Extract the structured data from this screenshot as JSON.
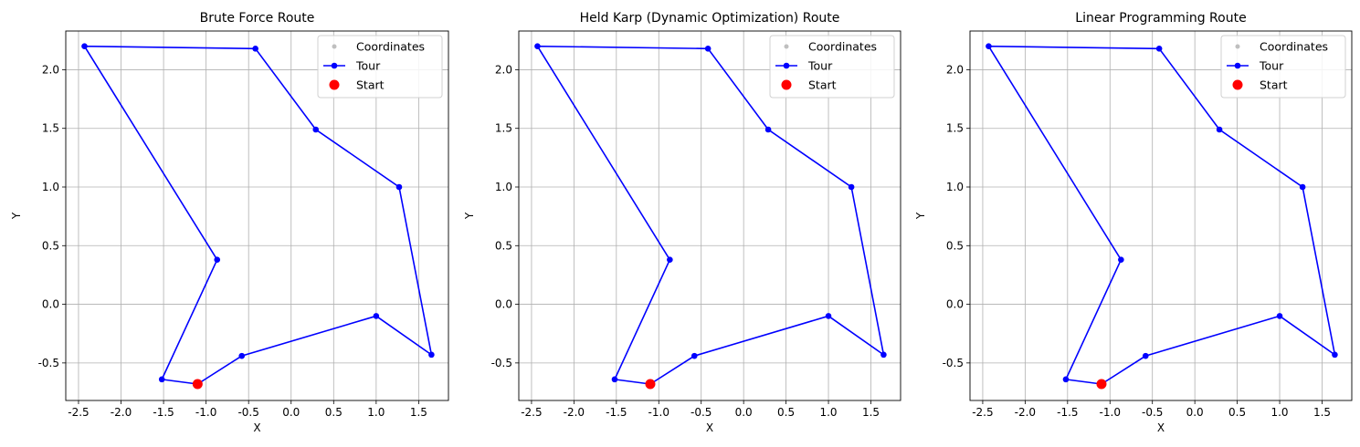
{
  "chart_data": [
    {
      "type": "line",
      "title": "Brute Force Route",
      "xlabel": "X",
      "ylabel": "Y",
      "xlim": [
        -2.65,
        1.85
      ],
      "ylim": [
        -0.82,
        2.33
      ],
      "xticks": [
        -2.5,
        -2.0,
        -1.5,
        -1.0,
        -0.5,
        0.0,
        0.5,
        1.0,
        1.5
      ],
      "xtick_labels": [
        "-2.5",
        "-2.0",
        "-1.5",
        "-1.0",
        "-0.5",
        "0.0",
        "0.5",
        "1.0",
        "1.5"
      ],
      "yticks": [
        -0.5,
        0.0,
        0.5,
        1.0,
        1.5,
        2.0
      ],
      "ytick_labels": [
        "-0.5",
        "0.0",
        "0.5",
        "1.0",
        "1.5",
        "2.0"
      ],
      "grid": true,
      "legend_position": "top-right",
      "series": [
        {
          "name": "Coordinates",
          "kind": "scatter",
          "color": "#bfbfbf",
          "x": [
            -1.1,
            -1.52,
            -0.87,
            -2.43,
            -0.42,
            0.29,
            1.27,
            1.65,
            1.0,
            -0.58
          ],
          "y": [
            -0.68,
            -0.64,
            0.38,
            2.2,
            2.18,
            1.49,
            1.0,
            -0.43,
            -0.1,
            -0.44
          ]
        },
        {
          "name": "Tour",
          "kind": "line",
          "color": "#0000ff",
          "x": [
            -1.1,
            -1.52,
            -0.87,
            -2.43,
            -0.42,
            0.29,
            1.27,
            1.65,
            1.0,
            -0.58,
            -1.1
          ],
          "y": [
            -0.68,
            -0.64,
            0.38,
            2.2,
            2.18,
            1.49,
            1.0,
            -0.43,
            -0.1,
            -0.44,
            -0.68
          ]
        },
        {
          "name": "Start",
          "kind": "point",
          "color": "#ff0000",
          "x": [
            -1.1
          ],
          "y": [
            -0.68
          ]
        }
      ]
    },
    {
      "type": "line",
      "title": "Held Karp (Dynamic Optimization) Route",
      "xlabel": "X",
      "ylabel": "Y",
      "xlim": [
        -2.65,
        1.85
      ],
      "ylim": [
        -0.82,
        2.33
      ],
      "xticks": [
        -2.5,
        -2.0,
        -1.5,
        -1.0,
        -0.5,
        0.0,
        0.5,
        1.0,
        1.5
      ],
      "xtick_labels": [
        "-2.5",
        "-2.0",
        "-1.5",
        "-1.0",
        "-0.5",
        "0.0",
        "0.5",
        "1.0",
        "1.5"
      ],
      "yticks": [
        -0.5,
        0.0,
        0.5,
        1.0,
        1.5,
        2.0
      ],
      "ytick_labels": [
        "-0.5",
        "0.0",
        "0.5",
        "1.0",
        "1.5",
        "2.0"
      ],
      "grid": true,
      "legend_position": "top-right",
      "series": [
        {
          "name": "Coordinates",
          "kind": "scatter",
          "color": "#bfbfbf",
          "x": [
            -1.1,
            -0.58,
            1.0,
            1.65,
            1.27,
            0.29,
            -0.42,
            -2.43,
            -0.87,
            -1.52
          ],
          "y": [
            -0.68,
            -0.44,
            -0.1,
            -0.43,
            1.0,
            1.49,
            2.18,
            2.2,
            0.38,
            -0.64
          ]
        },
        {
          "name": "Tour",
          "kind": "line",
          "color": "#0000ff",
          "x": [
            -1.1,
            -0.58,
            1.0,
            1.65,
            1.27,
            0.29,
            -0.42,
            -2.43,
            -0.87,
            -1.52,
            -1.1
          ],
          "y": [
            -0.68,
            -0.44,
            -0.1,
            -0.43,
            1.0,
            1.49,
            2.18,
            2.2,
            0.38,
            -0.64,
            -0.68
          ]
        },
        {
          "name": "Start",
          "kind": "point",
          "color": "#ff0000",
          "x": [
            -1.1
          ],
          "y": [
            -0.68
          ]
        }
      ]
    },
    {
      "type": "line",
      "title": "Linear Programming Route",
      "xlabel": "X",
      "ylabel": "Y",
      "xlim": [
        -2.65,
        1.85
      ],
      "ylim": [
        -0.82,
        2.33
      ],
      "xticks": [
        -2.5,
        -2.0,
        -1.5,
        -1.0,
        -0.5,
        0.0,
        0.5,
        1.0,
        1.5
      ],
      "xtick_labels": [
        "-2.5",
        "-2.0",
        "-1.5",
        "-1.0",
        "-0.5",
        "0.0",
        "0.5",
        "1.0",
        "1.5"
      ],
      "yticks": [
        -0.5,
        0.0,
        0.5,
        1.0,
        1.5,
        2.0
      ],
      "ytick_labels": [
        "-0.5",
        "0.0",
        "0.5",
        "1.0",
        "1.5",
        "2.0"
      ],
      "grid": true,
      "legend_position": "top-right",
      "series": [
        {
          "name": "Coordinates",
          "kind": "scatter",
          "color": "#bfbfbf",
          "x": [
            -1.1,
            -1.52,
            -0.87,
            -2.43,
            -0.42,
            0.29,
            1.27,
            1.65,
            1.0,
            -0.58
          ],
          "y": [
            -0.68,
            -0.64,
            0.38,
            2.2,
            2.18,
            1.49,
            1.0,
            -0.43,
            -0.1,
            -0.44
          ]
        },
        {
          "name": "Tour",
          "kind": "line",
          "color": "#0000ff",
          "x": [
            -1.1,
            -1.52,
            -0.87,
            -2.43,
            -0.42,
            0.29,
            1.27,
            1.65,
            1.0,
            -0.58,
            -1.1
          ],
          "y": [
            -0.68,
            -0.64,
            0.38,
            2.2,
            2.18,
            1.49,
            1.0,
            -0.43,
            -0.1,
            -0.44,
            -0.68
          ]
        },
        {
          "name": "Start",
          "kind": "point",
          "color": "#ff0000",
          "x": [
            -1.1
          ],
          "y": [
            -0.68
          ]
        }
      ]
    }
  ]
}
